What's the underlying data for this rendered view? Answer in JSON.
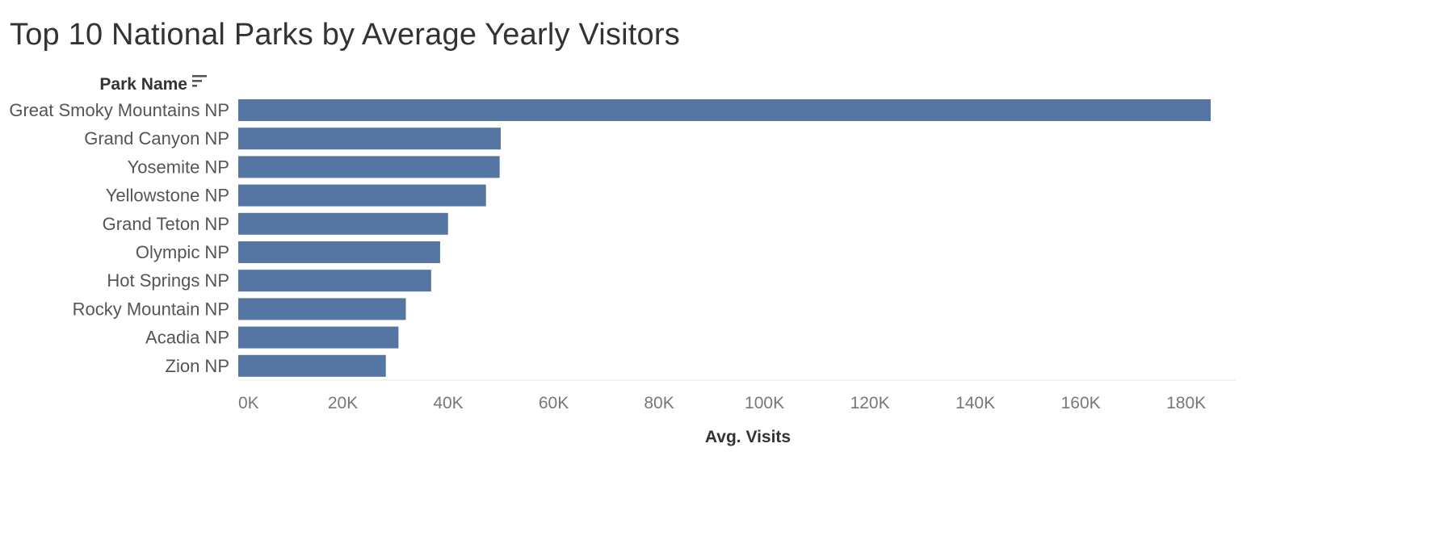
{
  "chart_data": {
    "type": "bar",
    "orientation": "horizontal",
    "title": "Top 10 National Parks by Average Yearly Visitors",
    "ylabel": "Park Name",
    "xlabel": "Avg. Visits",
    "categories": [
      "Great Smoky Mountains NP",
      "Grand Canyon NP",
      "Yosemite NP",
      "Yellowstone NP",
      "Grand Teton NP",
      "Olympic NP",
      "Hot Springs NP",
      "Rocky Mountain NP",
      "Acadia NP",
      "Zion NP"
    ],
    "values": [
      184500,
      49800,
      49600,
      47000,
      39800,
      38300,
      36600,
      31800,
      30400,
      28000
    ],
    "xlim": [
      0,
      190000
    ],
    "xticks": [
      0,
      20000,
      40000,
      60000,
      80000,
      100000,
      120000,
      140000,
      160000,
      180000
    ],
    "xtick_labels": [
      "0K",
      "20K",
      "40K",
      "60K",
      "80K",
      "100K",
      "120K",
      "140K",
      "160K",
      "180K"
    ],
    "bar_color": "#5575a3",
    "grid": false,
    "sort_icon": "sort-descending-icon"
  }
}
